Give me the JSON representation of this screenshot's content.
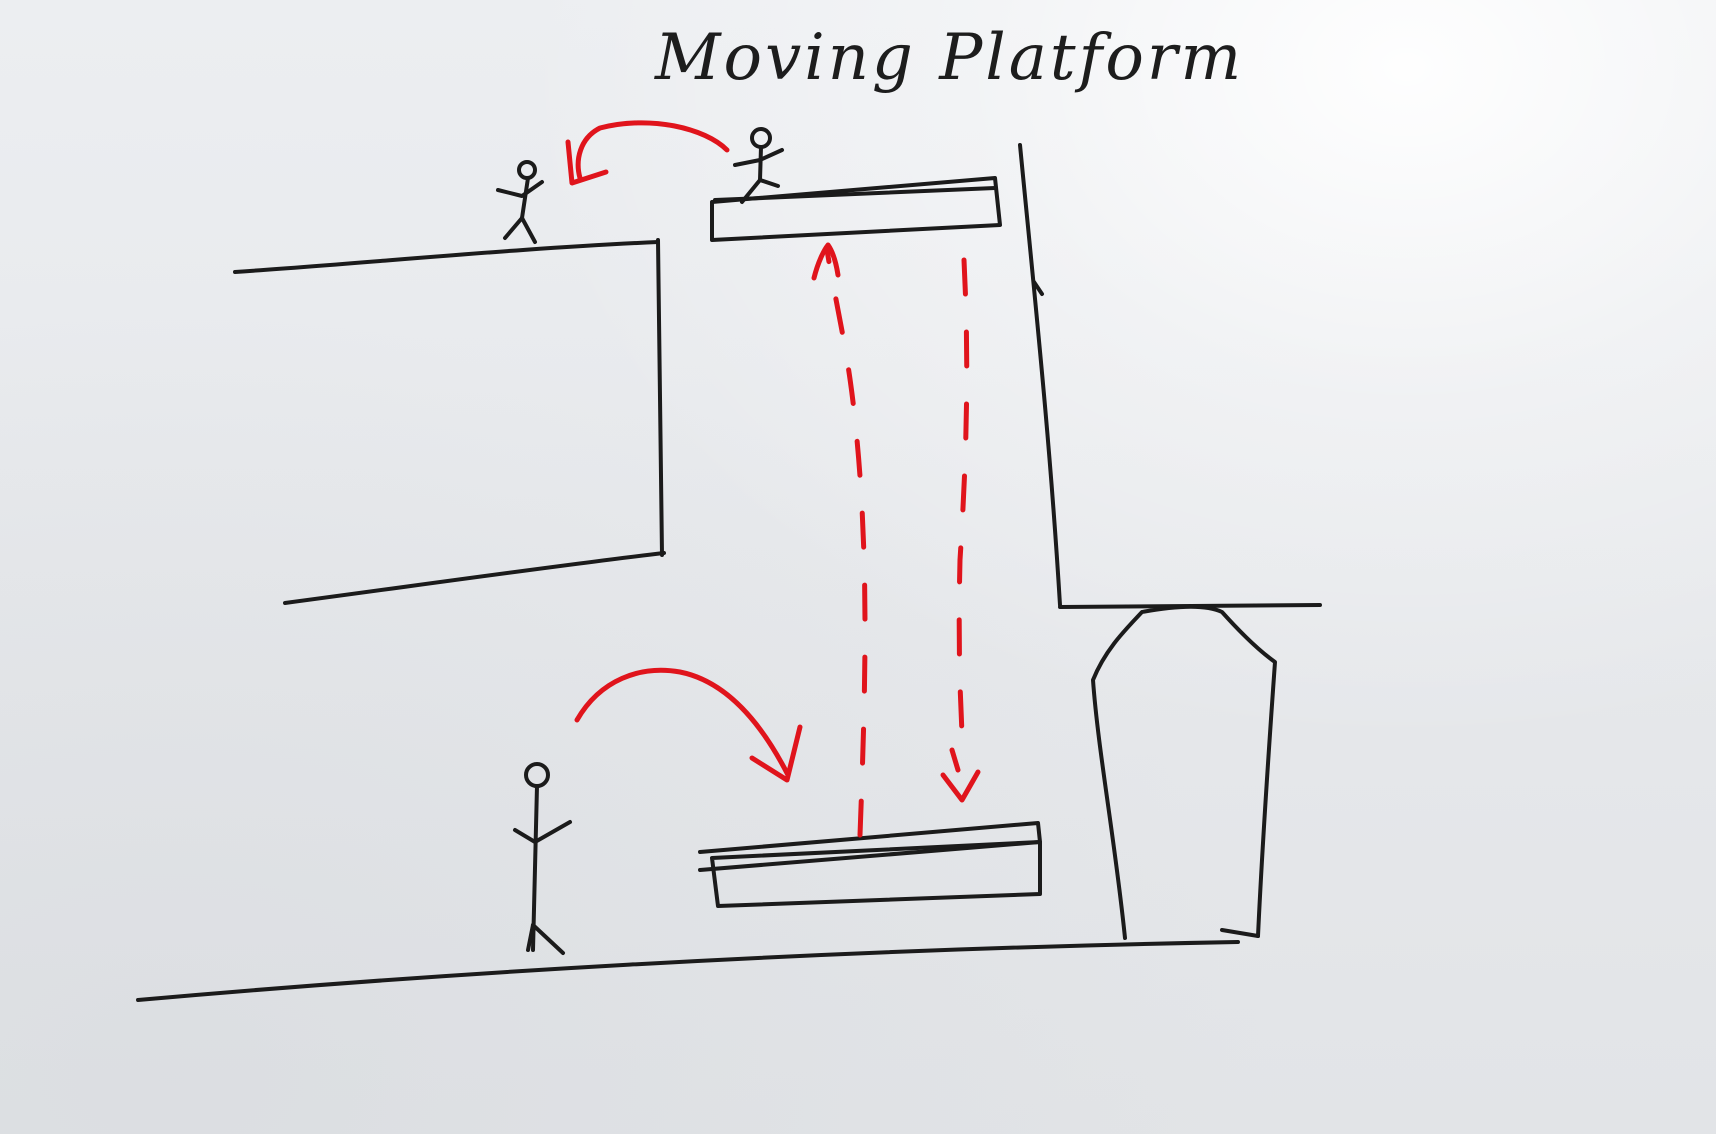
{
  "title": "Moving Platform",
  "colors": {
    "ink": "#1b1b1b",
    "arrow": "#e0141c",
    "board": "#e9ebee"
  },
  "elements": {
    "upper_ledge": "cliff-ledge",
    "elevator_shaft": "shaft-wall",
    "platform_top": "moving-platform-raised",
    "platform_bottom": "moving-platform-lowered",
    "player_on_platform": "stick-figure",
    "player_on_ledge": "stick-figure",
    "player_on_ground": "stick-figure",
    "arrow_jump_to_ledge": "curved-arrow",
    "arrow_jump_to_platform": "curved-arrow",
    "path_up": "dashed-arrow-up",
    "path_down": "dashed-arrow-down",
    "obstacle": "pillar-block"
  }
}
